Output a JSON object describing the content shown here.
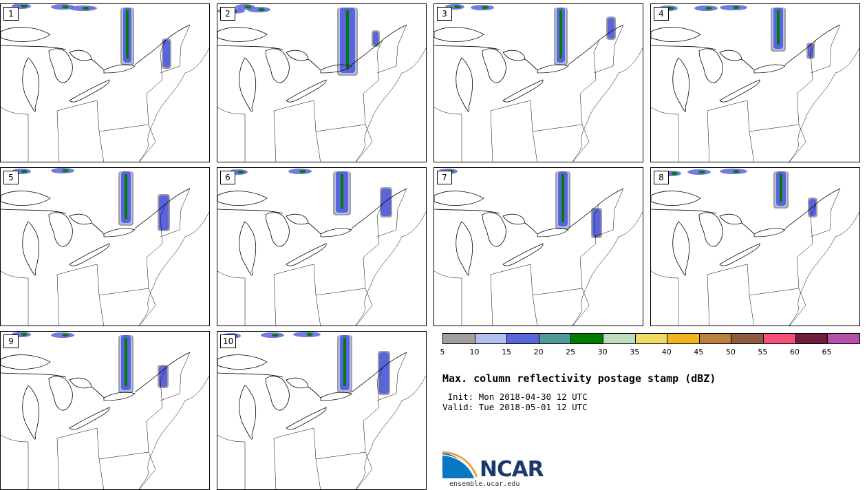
{
  "panels": [
    {
      "label": "1"
    },
    {
      "label": "2"
    },
    {
      "label": "3"
    },
    {
      "label": "4"
    },
    {
      "label": "5"
    },
    {
      "label": "6"
    },
    {
      "label": "7"
    },
    {
      "label": "8"
    },
    {
      "label": "9"
    },
    {
      "label": "10"
    }
  ],
  "colorbar": {
    "colors": [
      "#a0a0a0",
      "#b4bff0",
      "#5a64dc",
      "#4f9b9b",
      "#007d00",
      "#bedcbe",
      "#eedc64",
      "#f0b41e",
      "#b9823c",
      "#8c5a3c",
      "#f55078",
      "#6e1e3c",
      "#b450aa"
    ],
    "ticks": [
      "5",
      "10",
      "15",
      "20",
      "25",
      "30",
      "35",
      "40",
      "45",
      "50",
      "55",
      "60",
      "65"
    ]
  },
  "title": "Max. column reflectivity postage stamp (dBZ)",
  "init": " Init: Mon 2018-04-30 12 UTC",
  "valid": "Valid: Tue 2018-05-01 12 UTC",
  "logo": {
    "text": "NCAR",
    "site": "ensemble.ucar.edu"
  }
}
